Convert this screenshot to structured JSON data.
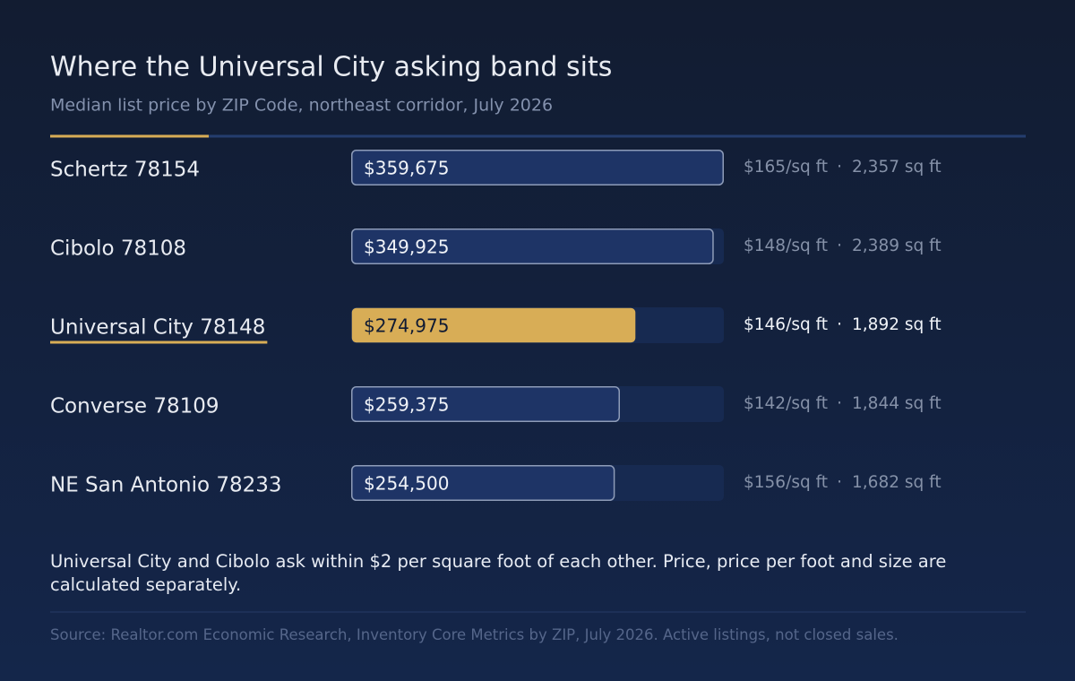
{
  "chart_data": {
    "type": "bar",
    "orientation": "horizontal",
    "title": "Where the Universal City asking band sits",
    "subtitle": "Median list price by ZIP Code, northeast corridor, July 2026",
    "categories": [
      "Schertz 78154",
      "Cibolo 78108",
      "Universal City 78148",
      "Converse 78109",
      "NE San Antonio 78233"
    ],
    "values": [
      359675,
      349925,
      274975,
      259375,
      254500
    ],
    "value_labels": [
      "$359,675",
      "$349,925",
      "$274,975",
      "$259,375",
      "$254,500"
    ],
    "price_per_sqft_labels": [
      "$165/sq ft",
      "$148/sq ft",
      "$146/sq ft",
      "$142/sq ft",
      "$156/sq ft"
    ],
    "size_labels": [
      "2,357 sq ft",
      "2,389 sq ft",
      "1,892 sq ft",
      "1,844 sq ft",
      "1,682 sq ft"
    ],
    "separator": "·",
    "xlim": [
      0,
      359675
    ],
    "color": "#1e3466",
    "highlight_color": "#d8ad56",
    "highlight_index": 2,
    "note": "Universal City and Cibolo ask within $2 per square foot of each other. Price, price per foot and size are calculated separately.",
    "source": "Source: Realtor.com Economic Research, Inventory Core Metrics by ZIP, July 2026. Active listings, not closed sales."
  }
}
